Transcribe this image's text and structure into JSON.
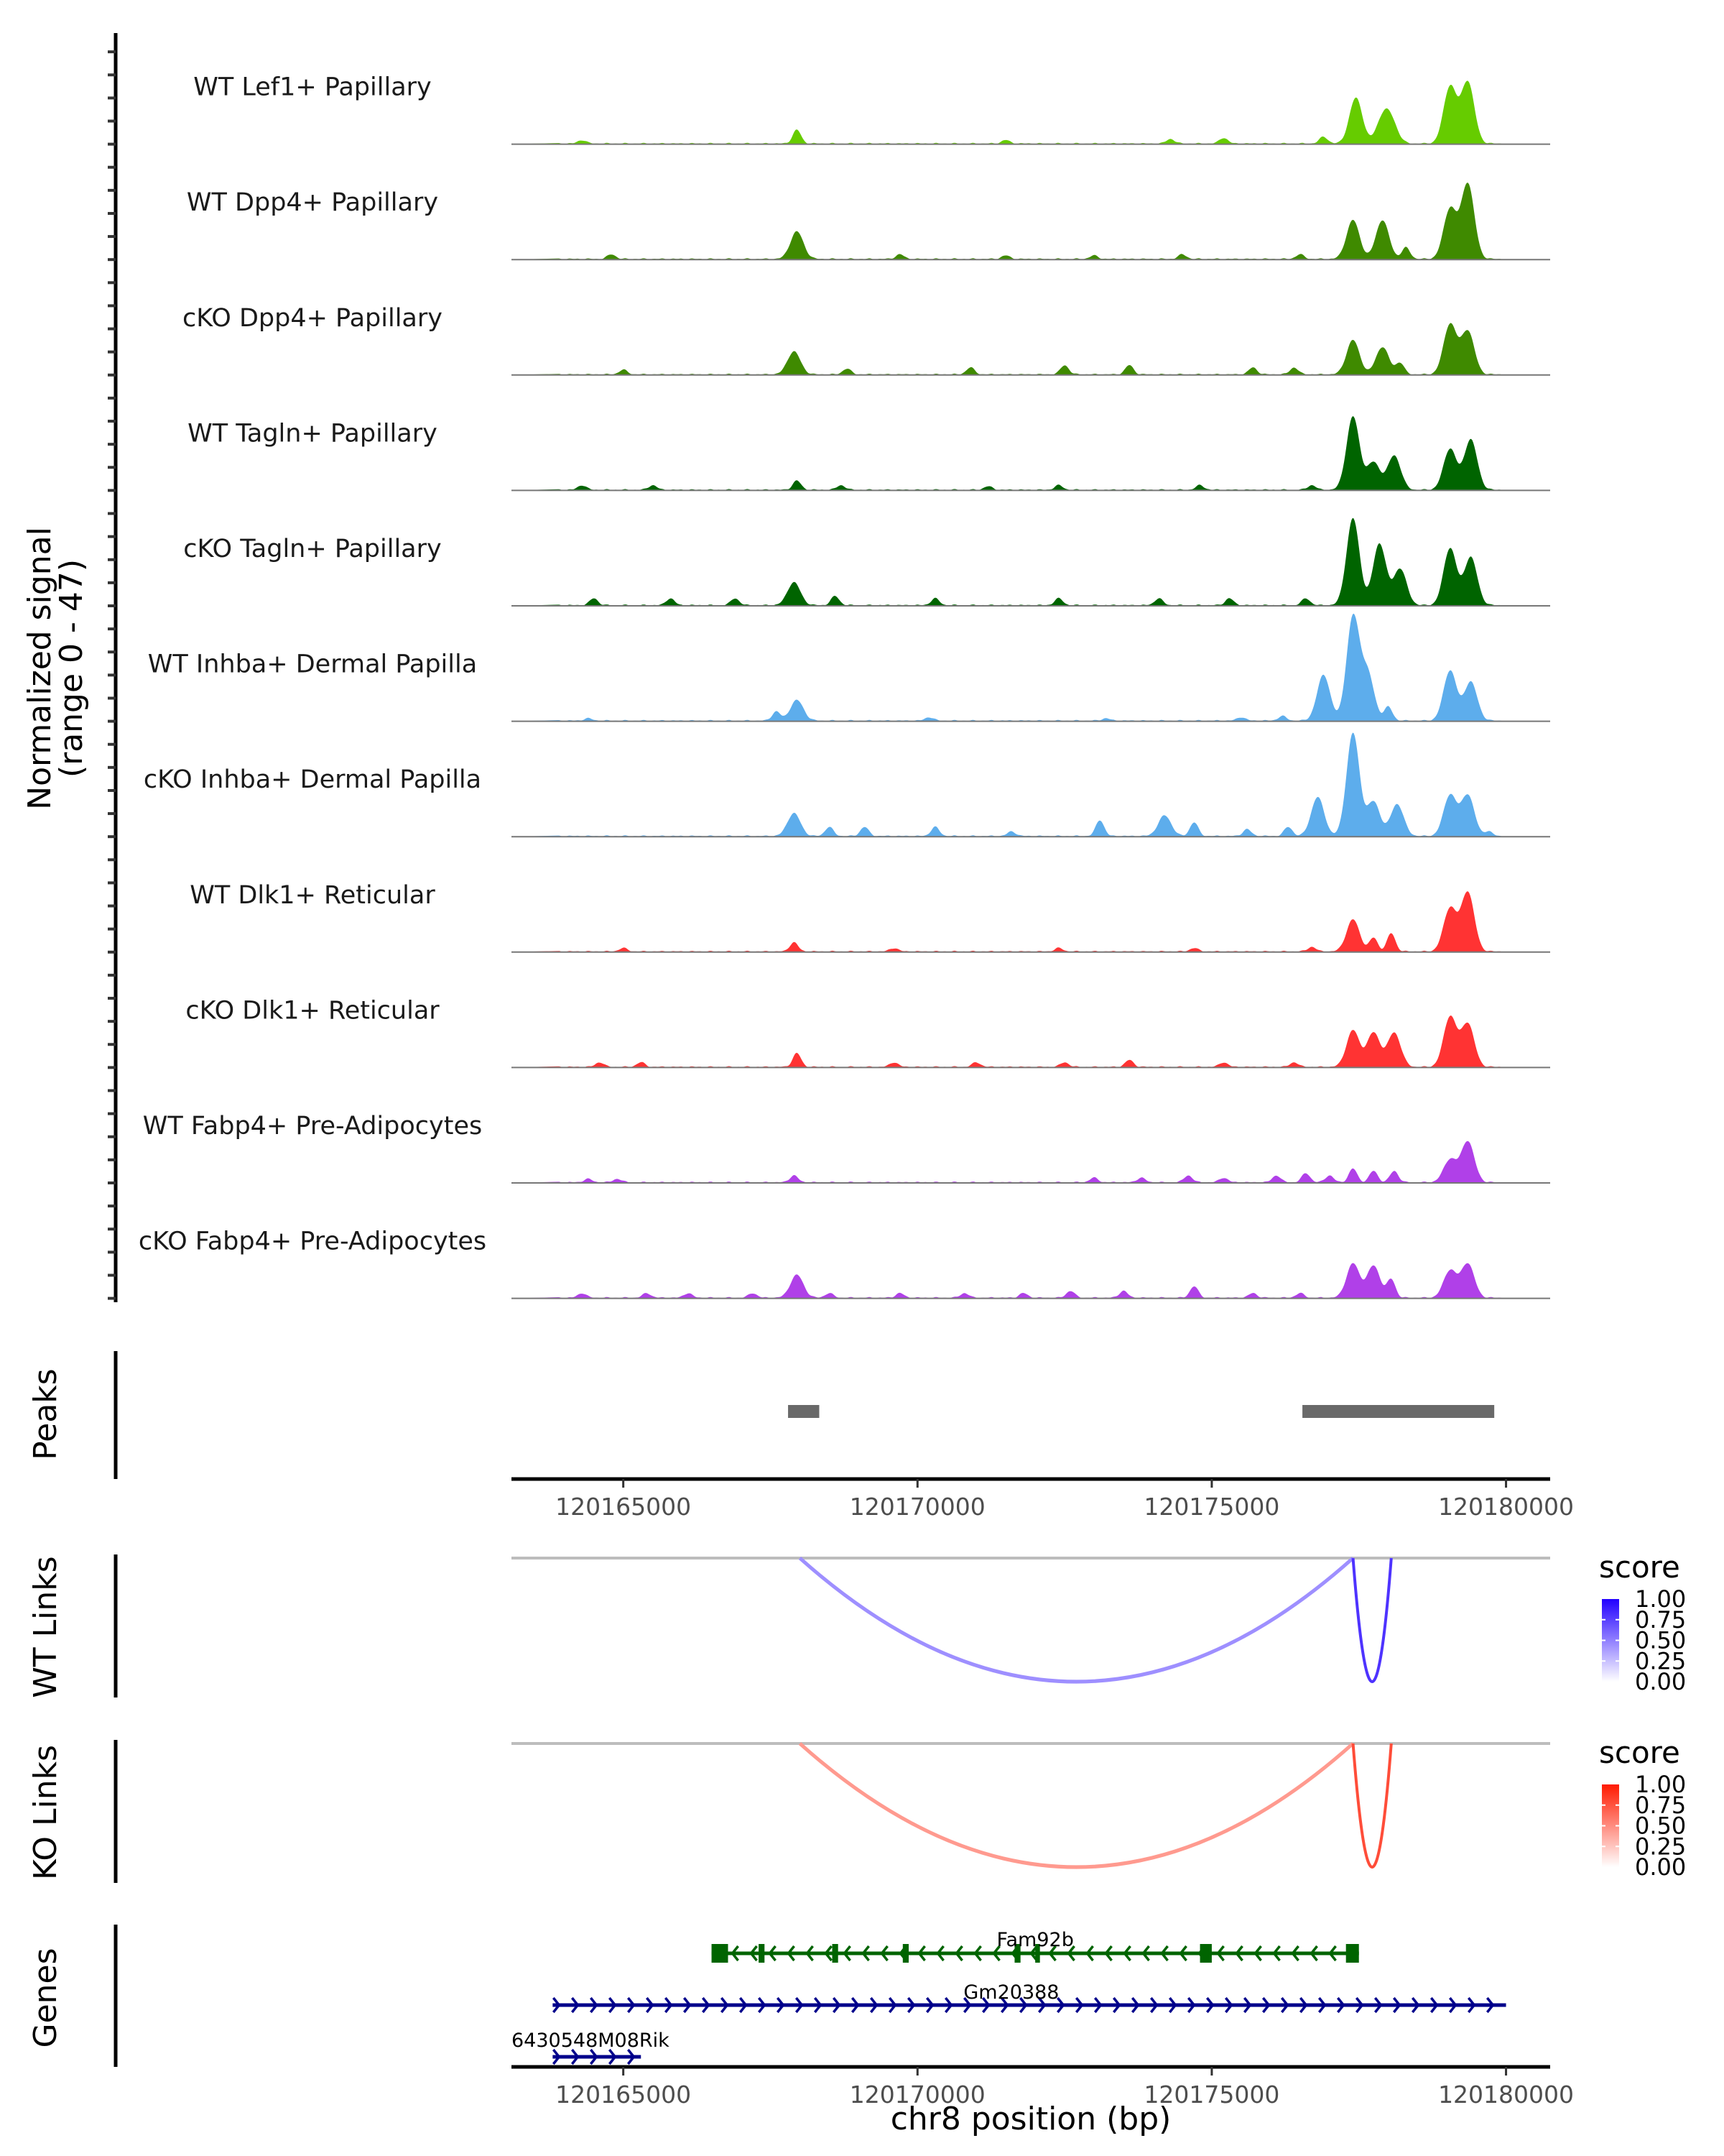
{
  "chart_data": {
    "type": "area",
    "title": "",
    "region": {
      "chrom": "chr8",
      "start": 120163100,
      "end": 120180750
    },
    "xlabel": "chr8 position (bp)",
    "x_ticks": [
      120165000,
      120170000,
      120175000,
      120180000
    ],
    "x_tick_labels": [
      "120165000",
      "120170000",
      "120175000",
      "120180000"
    ],
    "coverage": {
      "ylabel_line1": "Normalized signal",
      "ylabel_line2": "(range 0 - 47)",
      "ylim": [
        0,
        47
      ],
      "tracks": [
        {
          "name": "WT Lef1+ Papillary",
          "color": "#66CC00",
          "peaks": [
            [
              120167950,
              6
            ],
            [
              120177450,
              20
            ],
            [
              120177900,
              10
            ],
            [
              120178050,
              9
            ],
            [
              120179050,
              25
            ],
            [
              120179350,
              27
            ],
            [
              120164300,
              1.5
            ],
            [
              120171500,
              1.5
            ],
            [
              120174300,
              2
            ],
            [
              120175200,
              2.5
            ],
            [
              120176900,
              3
            ]
          ]
        },
        {
          "name": "WT Dpp4+ Papillary",
          "color": "#3F8A00",
          "peaks": [
            [
              120167950,
              12
            ],
            [
              120177400,
              17
            ],
            [
              120177900,
              17
            ],
            [
              120178300,
              5
            ],
            [
              120179050,
              22
            ],
            [
              120179350,
              33
            ],
            [
              120164800,
              2
            ],
            [
              120169700,
              2
            ],
            [
              120171500,
              1.5
            ],
            [
              120173000,
              1.5
            ],
            [
              120174500,
              2
            ],
            [
              120176500,
              2
            ]
          ]
        },
        {
          "name": "cKO Dpp4+ Papillary",
          "color": "#3F8A00",
          "peaks": [
            [
              120167900,
              10
            ],
            [
              120177400,
              15
            ],
            [
              120177900,
              12
            ],
            [
              120178200,
              5
            ],
            [
              120179050,
              22
            ],
            [
              120179350,
              19
            ],
            [
              120165000,
              2
            ],
            [
              120168800,
              2.5
            ],
            [
              120170900,
              3
            ],
            [
              120172500,
              4
            ],
            [
              120173600,
              4
            ],
            [
              120175700,
              3
            ],
            [
              120176400,
              3
            ]
          ]
        },
        {
          "name": "WT Tagln+ Papillary",
          "color": "#006400",
          "peaks": [
            [
              120167950,
              4
            ],
            [
              120177400,
              32
            ],
            [
              120177750,
              12
            ],
            [
              120178100,
              15
            ],
            [
              120179050,
              18
            ],
            [
              120179400,
              22
            ],
            [
              120164300,
              2
            ],
            [
              120165500,
              2
            ],
            [
              120168700,
              2
            ],
            [
              120171200,
              1.5
            ],
            [
              120172400,
              2
            ],
            [
              120174800,
              2
            ],
            [
              120176700,
              2
            ]
          ]
        },
        {
          "name": "cKO Tagln+ Papillary",
          "color": "#006400",
          "peaks": [
            [
              120167900,
              10
            ],
            [
              120177400,
              38
            ],
            [
              120177850,
              27
            ],
            [
              120178200,
              16
            ],
            [
              120179050,
              25
            ],
            [
              120179400,
              21
            ],
            [
              120164500,
              3
            ],
            [
              120165800,
              3
            ],
            [
              120166900,
              3
            ],
            [
              120168600,
              4
            ],
            [
              120170300,
              3
            ],
            [
              120172400,
              3
            ],
            [
              120174100,
              3
            ],
            [
              120175300,
              3
            ],
            [
              120176600,
              3
            ]
          ]
        },
        {
          "name": "WT Inhba+ Dermal Papilla",
          "color": "#5DADEC",
          "peaks": [
            [
              120167600,
              4
            ],
            [
              120167950,
              9
            ],
            [
              120176900,
              20
            ],
            [
              120177400,
              45
            ],
            [
              120177650,
              20
            ],
            [
              120178000,
              6
            ],
            [
              120179050,
              22
            ],
            [
              120179400,
              17
            ],
            [
              120164400,
              1
            ],
            [
              120170200,
              1.5
            ],
            [
              120173200,
              1
            ],
            [
              120175500,
              1.5
            ],
            [
              120176200,
              2
            ]
          ]
        },
        {
          "name": "cKO Inhba+ Dermal Papilla",
          "color": "#5DADEC",
          "peaks": [
            [
              120167900,
              10
            ],
            [
              120168500,
              4
            ],
            [
              120169100,
              4
            ],
            [
              120170300,
              4
            ],
            [
              120171600,
              2
            ],
            [
              120173100,
              7
            ],
            [
              120174200,
              9
            ],
            [
              120174700,
              6
            ],
            [
              120175600,
              3
            ],
            [
              120176300,
              4
            ],
            [
              120176800,
              17
            ],
            [
              120177400,
              45
            ],
            [
              120177750,
              15
            ],
            [
              120178150,
              14
            ],
            [
              120179050,
              18
            ],
            [
              120179350,
              18
            ],
            [
              120179700,
              2
            ]
          ]
        },
        {
          "name": "WT Dlk1+ Reticular",
          "color": "#FF3333",
          "peaks": [
            [
              120167900,
              4
            ],
            [
              120177400,
              14
            ],
            [
              120177750,
              6
            ],
            [
              120178050,
              8
            ],
            [
              120179050,
              19
            ],
            [
              120179350,
              26
            ],
            [
              120165000,
              1.5
            ],
            [
              120169600,
              1.5
            ],
            [
              120172400,
              1.5
            ],
            [
              120174700,
              1.5
            ],
            [
              120176700,
              2
            ]
          ]
        },
        {
          "name": "cKO Dlk1+ Reticular",
          "color": "#FF3333",
          "peaks": [
            [
              120167950,
              6
            ],
            [
              120177400,
              16
            ],
            [
              120177750,
              15
            ],
            [
              120178100,
              15
            ],
            [
              120179050,
              22
            ],
            [
              120179350,
              19
            ],
            [
              120164600,
              2
            ],
            [
              120165300,
              2
            ],
            [
              120169600,
              2
            ],
            [
              120171000,
              2
            ],
            [
              120172500,
              2
            ],
            [
              120173600,
              3
            ],
            [
              120175200,
              2
            ],
            [
              120176400,
              2
            ]
          ]
        },
        {
          "name": "WT Fabp4+ Pre-Adipocytes",
          "color": "#B040E8",
          "peaks": [
            [
              120167900,
              3
            ],
            [
              120177400,
              6
            ],
            [
              120177750,
              5
            ],
            [
              120178100,
              5
            ],
            [
              120179050,
              10
            ],
            [
              120179350,
              18
            ],
            [
              120164400,
              1.5
            ],
            [
              120164900,
              1.5
            ],
            [
              120173000,
              2
            ],
            [
              120173800,
              2
            ],
            [
              120174600,
              3
            ],
            [
              120175200,
              2
            ],
            [
              120176100,
              3
            ],
            [
              120176600,
              4
            ],
            [
              120177000,
              3
            ]
          ]
        },
        {
          "name": "cKO Fabp4+ Pre-Adipocytes",
          "color": "#B040E8",
          "peaks": [
            [
              120167950,
              10
            ],
            [
              120177400,
              15
            ],
            [
              120177750,
              14
            ],
            [
              120178050,
              8
            ],
            [
              120179050,
              12
            ],
            [
              120179350,
              15
            ],
            [
              120164300,
              2
            ],
            [
              120165400,
              2
            ],
            [
              120166100,
              2
            ],
            [
              120167200,
              2
            ],
            [
              120168500,
              2
            ],
            [
              120169700,
              2
            ],
            [
              120170800,
              2
            ],
            [
              120171800,
              2
            ],
            [
              120172600,
              3
            ],
            [
              120173500,
              3
            ],
            [
              120174700,
              5
            ],
            [
              120175700,
              2
            ],
            [
              120176500,
              2
            ]
          ]
        }
      ]
    },
    "peaks_track": {
      "label": "Peaks",
      "color": "#696969",
      "intervals": [
        [
          120167800,
          120168330
        ],
        [
          120176540,
          120179800
        ]
      ]
    },
    "links": [
      {
        "label": "WT Links",
        "legend_title": "score",
        "color_high": "#2200FF",
        "color_low": "#FFFFFF",
        "legend_ticks": [
          "1.00",
          "0.75",
          "0.50",
          "0.25",
          "0.00"
        ],
        "arcs": [
          {
            "start": 120168000,
            "end": 120177400,
            "score": 0.3
          },
          {
            "start": 120177400,
            "end": 120178050,
            "score": 0.75
          }
        ]
      },
      {
        "label": "KO Links",
        "legend_title": "score",
        "color_high": "#FF1A00",
        "color_low": "#FFFFFF",
        "legend_ticks": [
          "1.00",
          "0.75",
          "0.50",
          "0.25",
          "0.00"
        ],
        "arcs": [
          {
            "start": 120168000,
            "end": 120177400,
            "score": 0.3
          },
          {
            "start": 120177400,
            "end": 120178050,
            "score": 0.72
          }
        ]
      }
    ],
    "genes": {
      "label": "Genes",
      "items": [
        {
          "name": "Fam92b",
          "strand": "-",
          "start": 120166500,
          "end": 120177500,
          "color": "#006400",
          "exons": [
            [
              120166500,
              120166780
            ],
            [
              120167300,
              120167400
            ],
            [
              120168550,
              120168650
            ],
            [
              120169750,
              120169850
            ],
            [
              120171650,
              120171750
            ],
            [
              120172000,
              120172080
            ],
            [
              120174800,
              120175000
            ],
            [
              120177280,
              120177500
            ]
          ]
        },
        {
          "name": "Gm20388",
          "strand": "+",
          "start": 120163800,
          "end": 120180000,
          "color": "#00008B",
          "exons": []
        },
        {
          "name": "6430548M08Rik",
          "strand": "+",
          "start": 120163800,
          "end": 120165300,
          "color": "#00008B",
          "exons": []
        }
      ]
    }
  }
}
